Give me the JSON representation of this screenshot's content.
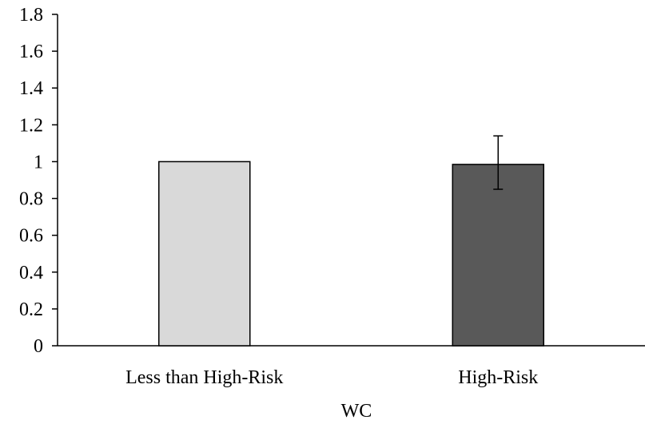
{
  "chart_data": {
    "type": "bar",
    "title": "",
    "xlabel": "WC",
    "ylabel": "",
    "ylim": [
      0,
      1.8
    ],
    "yticks": [
      "0",
      "0.2",
      "0.4",
      "0.6",
      "0.8",
      "1",
      "1.2",
      "1.4",
      "1.6",
      "1.8"
    ],
    "categories": [
      "Less than High-Risk",
      "High-Risk"
    ],
    "values": [
      1.0,
      0.985
    ],
    "error_bars": [
      null,
      {
        "low": 0.85,
        "high": 1.14
      }
    ],
    "bar_colors": [
      "#d9d9d9",
      "#595959"
    ],
    "grid": false,
    "legend": "none"
  }
}
